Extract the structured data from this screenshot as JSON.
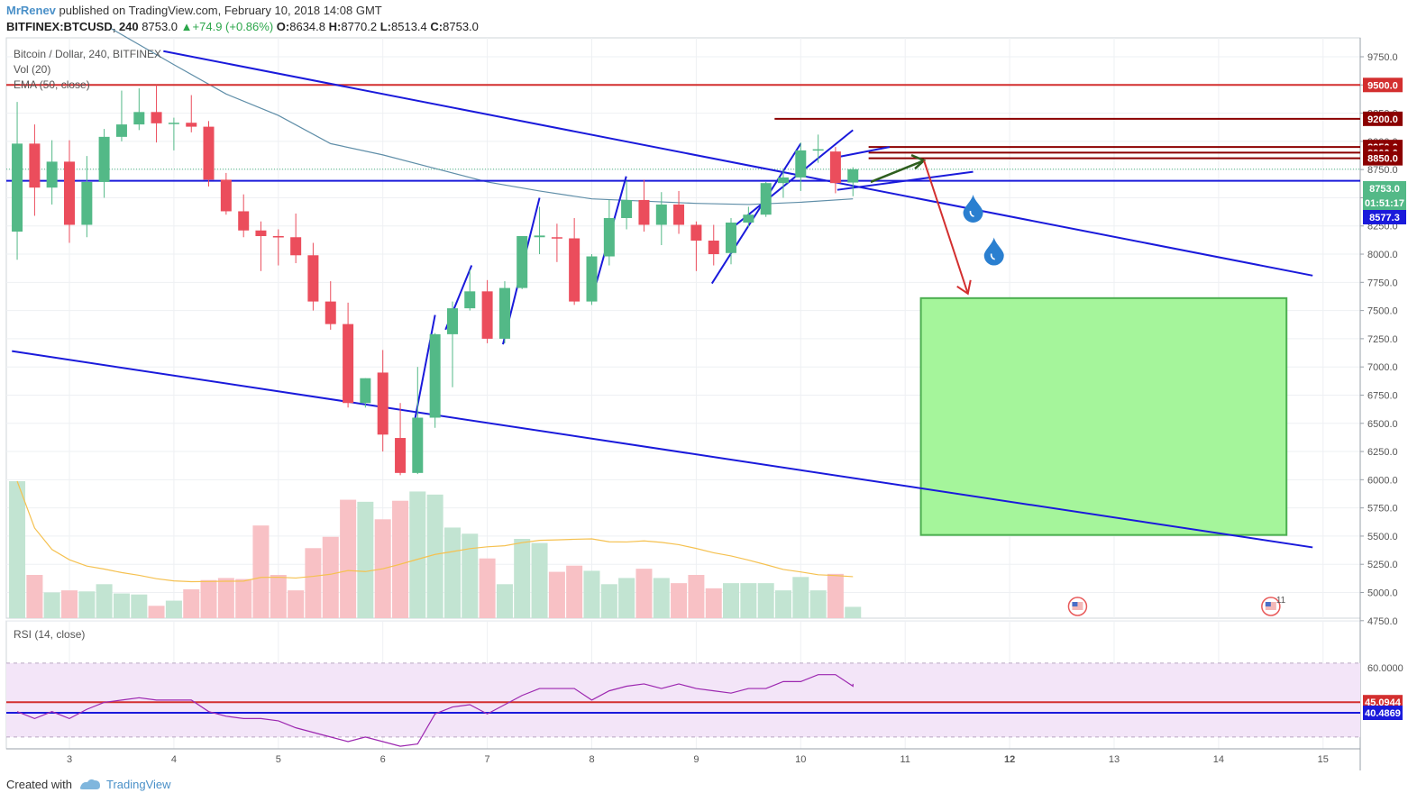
{
  "header": {
    "author": "MrRenev",
    "published": " published on TradingView.com, February 10, 2018 14:08 GMT",
    "symbol": "BITFINEX:BTCUSD, 240",
    "last": "8753.0",
    "change": "+74.9 (+0.86%)",
    "o_label": "O:",
    "o": "8634.8",
    "h_label": "H:",
    "h": "8770.2",
    "l_label": "L:",
    "l": "8513.4",
    "c_label": "C:",
    "c": "8753.0"
  },
  "legend": {
    "main": "Bitcoin / Dollar, 240, BITFINEX",
    "vol": "Vol (20)",
    "ema": "EMA (50, close)",
    "rsi": "RSI (14, close)"
  },
  "footer": {
    "created": "Created with",
    "brand": "TradingView"
  },
  "colors": {
    "up": "#53b987",
    "down": "#eb4d5c",
    "up_vol": "#c2e4d2",
    "down_vol": "#f8c1c5",
    "trend": "#1a1adb",
    "level": "#d32f2f",
    "dark_level": "#8b0000",
    "ema": "#5f8ea8",
    "vol_ma": "#f5c150",
    "rsi": "#9c27b0",
    "rsi_bg": "#f3e5f8",
    "target_fill": "#a5f59b",
    "target_stroke": "#4caf50",
    "drop": "#2a7fd0"
  },
  "icons": [
    "droplet-icon",
    "us-flag-event-icon",
    "arrow-icon",
    "tradingview-logo-icon"
  ],
  "chart_data": {
    "type": "candlestick",
    "timeframe": "240",
    "x_axis_labels": [
      "3",
      "4",
      "5",
      "6",
      "7",
      "8",
      "9",
      "10",
      "11",
      "12",
      "13",
      "14",
      "15"
    ],
    "price_axis_labels": [
      "9750.0",
      "9500.0",
      "9250.0",
      "9000.0",
      "8750.0",
      "8500.0",
      "8250.0",
      "8000.0",
      "7750.0",
      "7500.0",
      "7250.0",
      "7000.0",
      "6750.0",
      "6500.0",
      "6250.0",
      "6000.0",
      "5750.0",
      "5500.0",
      "5250.0",
      "5000.0",
      "4750.0"
    ],
    "ylim": [
      4630,
      9930
    ],
    "candles": [
      {
        "day": 2.5,
        "o": 8200,
        "h": 9350,
        "l": 7950,
        "c": 8980
      },
      {
        "day": 2.667,
        "o": 8980,
        "h": 9150,
        "l": 8340,
        "c": 8590
      },
      {
        "day": 2.833,
        "o": 8590,
        "h": 9010,
        "l": 8440,
        "c": 8820
      },
      {
        "day": 3.0,
        "o": 8820,
        "h": 9010,
        "l": 8100,
        "c": 8260
      },
      {
        "day": 3.167,
        "o": 8260,
        "h": 8870,
        "l": 8150,
        "c": 8640
      },
      {
        "day": 3.333,
        "o": 8640,
        "h": 9110,
        "l": 8500,
        "c": 9040
      },
      {
        "day": 3.5,
        "o": 9040,
        "h": 9450,
        "l": 9000,
        "c": 9150
      },
      {
        "day": 3.667,
        "o": 9150,
        "h": 9470,
        "l": 9100,
        "c": 9260
      },
      {
        "day": 3.833,
        "o": 9260,
        "h": 9500,
        "l": 8990,
        "c": 9160
      },
      {
        "day": 4.0,
        "o": 9160,
        "h": 9210,
        "l": 8920,
        "c": 9165
      },
      {
        "day": 4.167,
        "o": 9165,
        "h": 9410,
        "l": 9080,
        "c": 9130
      },
      {
        "day": 4.333,
        "o": 9130,
        "h": 9180,
        "l": 8600,
        "c": 8660
      },
      {
        "day": 4.5,
        "o": 8660,
        "h": 8720,
        "l": 8350,
        "c": 8380
      },
      {
        "day": 4.667,
        "o": 8380,
        "h": 8530,
        "l": 8150,
        "c": 8210
      },
      {
        "day": 4.833,
        "o": 8210,
        "h": 8290,
        "l": 7850,
        "c": 8160
      },
      {
        "day": 5.0,
        "o": 8160,
        "h": 8220,
        "l": 7900,
        "c": 8150
      },
      {
        "day": 5.167,
        "o": 8150,
        "h": 8360,
        "l": 7920,
        "c": 7990
      },
      {
        "day": 5.333,
        "o": 7990,
        "h": 8100,
        "l": 7500,
        "c": 7580
      },
      {
        "day": 5.5,
        "o": 7580,
        "h": 7760,
        "l": 7330,
        "c": 7380
      },
      {
        "day": 5.667,
        "o": 7380,
        "h": 7570,
        "l": 6640,
        "c": 6680
      },
      {
        "day": 5.833,
        "o": 6680,
        "h": 6900,
        "l": 6640,
        "c": 6900
      },
      {
        "day": 6.0,
        "o": 6950,
        "h": 7150,
        "l": 6250,
        "c": 6400
      },
      {
        "day": 6.167,
        "o": 6370,
        "h": 6680,
        "l": 6040,
        "c": 6060
      },
      {
        "day": 6.333,
        "o": 6060,
        "h": 7000,
        "l": 6050,
        "c": 6550
      },
      {
        "day": 6.5,
        "o": 6550,
        "h": 7300,
        "l": 6460,
        "c": 7290
      },
      {
        "day": 6.667,
        "o": 7290,
        "h": 7580,
        "l": 6820,
        "c": 7520
      },
      {
        "day": 6.833,
        "o": 7520,
        "h": 7860,
        "l": 7500,
        "c": 7670
      },
      {
        "day": 7.0,
        "o": 7670,
        "h": 7770,
        "l": 7210,
        "c": 7250
      },
      {
        "day": 7.167,
        "o": 7250,
        "h": 7760,
        "l": 7210,
        "c": 7700
      },
      {
        "day": 7.333,
        "o": 7700,
        "h": 8160,
        "l": 7690,
        "c": 8160
      },
      {
        "day": 7.5,
        "o": 8150,
        "h": 8420,
        "l": 8000,
        "c": 8165
      },
      {
        "day": 7.667,
        "o": 8150,
        "h": 8270,
        "l": 7930,
        "c": 8140
      },
      {
        "day": 7.833,
        "o": 8140,
        "h": 8320,
        "l": 7550,
        "c": 7580
      },
      {
        "day": 8.0,
        "o": 7580,
        "h": 8000,
        "l": 7550,
        "c": 7980
      },
      {
        "day": 8.167,
        "o": 7980,
        "h": 8480,
        "l": 7900,
        "c": 8320
      },
      {
        "day": 8.333,
        "o": 8320,
        "h": 8650,
        "l": 8220,
        "c": 8480
      },
      {
        "day": 8.5,
        "o": 8480,
        "h": 8660,
        "l": 8200,
        "c": 8260
      },
      {
        "day": 8.667,
        "o": 8260,
        "h": 8550,
        "l": 8080,
        "c": 8440
      },
      {
        "day": 8.833,
        "o": 8440,
        "h": 8560,
        "l": 8180,
        "c": 8260
      },
      {
        "day": 9.0,
        "o": 8260,
        "h": 8290,
        "l": 7850,
        "c": 8120
      },
      {
        "day": 9.167,
        "o": 8120,
        "h": 8260,
        "l": 7900,
        "c": 8000
      },
      {
        "day": 9.333,
        "o": 8010,
        "h": 8320,
        "l": 7910,
        "c": 8280
      },
      {
        "day": 9.5,
        "o": 8280,
        "h": 8420,
        "l": 8240,
        "c": 8350
      },
      {
        "day": 9.667,
        "o": 8350,
        "h": 8640,
        "l": 8330,
        "c": 8630
      },
      {
        "day": 9.833,
        "o": 8630,
        "h": 8750,
        "l": 8500,
        "c": 8680
      },
      {
        "day": 10.0,
        "o": 8680,
        "h": 8990,
        "l": 8560,
        "c": 8920
      },
      {
        "day": 10.167,
        "o": 8920,
        "h": 9060,
        "l": 8810,
        "c": 8930
      },
      {
        "day": 10.333,
        "o": 8910,
        "h": 8950,
        "l": 8540,
        "c": 8630
      },
      {
        "day": 10.5,
        "o": 8634.8,
        "h": 8770.2,
        "l": 8513.4,
        "c": 8753.0
      }
    ],
    "volume": {
      "label": "Vol (20)",
      "bars": [
        1330,
        420,
        250,
        270,
        260,
        330,
        240,
        230,
        120,
        170,
        280,
        370,
        390,
        380,
        900,
        420,
        270,
        680,
        790,
        1150,
        1130,
        960,
        1140,
        1230,
        1200,
        880,
        820,
        580,
        330,
        770,
        730,
        450,
        510,
        460,
        330,
        390,
        480,
        390,
        340,
        420,
        290,
        340,
        340,
        340,
        270,
        400,
        270,
        430,
        110
      ]
    },
    "ema": {
      "label": "EMA (50, close)",
      "points": [
        [
          3.4,
          10000
        ],
        [
          4.0,
          9680
        ],
        [
          4.5,
          9420
        ],
        [
          5.0,
          9230
        ],
        [
          5.5,
          8980
        ],
        [
          6.0,
          8880
        ],
        [
          6.5,
          8760
        ],
        [
          7.0,
          8640
        ],
        [
          7.5,
          8560
        ],
        [
          8.0,
          8490
        ],
        [
          8.5,
          8470
        ],
        [
          9.0,
          8450
        ],
        [
          9.5,
          8440
        ],
        [
          10.0,
          8460
        ],
        [
          10.5,
          8490
        ]
      ]
    },
    "rsi": {
      "label": "RSI (14, close)",
      "ylim": [
        28,
        70
      ],
      "band": [
        30,
        62
      ],
      "ticks": [
        "60.0000"
      ],
      "levels": [
        {
          "value": 45.0944,
          "label": "45.0944",
          "color": "#d32f2f"
        },
        {
          "value": 40.4869,
          "label": "40.4869",
          "color": "#1a1adb"
        }
      ],
      "values": [
        41,
        38,
        41,
        38,
        42,
        45,
        46,
        47,
        46,
        46,
        46,
        41,
        39,
        38,
        38,
        37,
        34,
        32,
        30,
        28,
        30,
        28,
        26,
        27,
        40,
        43,
        44,
        40,
        44,
        48,
        51,
        51,
        51,
        46,
        50,
        52,
        53,
        51,
        53,
        51,
        50,
        49,
        51,
        51,
        54,
        54,
        57,
        57,
        52,
        53
      ]
    },
    "levels": [
      {
        "price": 9500.0,
        "label": "9500.0",
        "color": "#d32f2f",
        "full": true
      },
      {
        "price": 9200.0,
        "label": "9200.0",
        "color": "#8b0000",
        "from_day": 9.75
      },
      {
        "price": 8950.0,
        "label": "8950.0",
        "color": "#8b0000",
        "from_day": 10.65
      },
      {
        "price": 8900.0,
        "label": "8900.0",
        "color": "#8b0000",
        "from_day": 10.65
      },
      {
        "price": 8850.0,
        "label": "8850.0",
        "color": "#8b0000",
        "from_day": 10.65
      },
      {
        "price": 8650.0,
        "label": "",
        "color": "#1a1adb",
        "full": true
      }
    ],
    "price_tags": [
      {
        "price": 8753.0,
        "label": "8753.0",
        "color": "#53b987"
      },
      {
        "price": 8620.0,
        "label": "01:51:17",
        "color": "#53b987"
      },
      {
        "price": 8577.3,
        "label": "8577.3",
        "color": "#1a1adb"
      }
    ],
    "trendlines": [
      {
        "name": "upper-trend",
        "from": [
          3.9,
          9800
        ],
        "to": [
          14.9,
          7810
        ]
      },
      {
        "name": "lower-trend",
        "from": [
          2.45,
          7140
        ],
        "to": [
          14.9,
          5400
        ]
      },
      {
        "name": "wedge-lower",
        "from": [
          10.35,
          8570
        ],
        "to": [
          11.65,
          8730
        ]
      },
      {
        "name": "wedge-upper",
        "from": [
          10.35,
          8860
        ],
        "to": [
          10.85,
          8950
        ]
      },
      {
        "name": "rise-1",
        "from": [
          6.3,
          6500
        ],
        "to": [
          6.5,
          7460
        ]
      },
      {
        "name": "rise-2",
        "from": [
          6.6,
          7330
        ],
        "to": [
          6.85,
          7900
        ]
      },
      {
        "name": "rise-3",
        "from": [
          7.15,
          7200
        ],
        "to": [
          7.5,
          8500
        ]
      },
      {
        "name": "rise-4",
        "from": [
          8.0,
          7600
        ],
        "to": [
          8.33,
          8690
        ]
      },
      {
        "name": "rise-5",
        "from": [
          9.15,
          7740
        ],
        "to": [
          10.0,
          8980
        ]
      },
      {
        "name": "rise-6",
        "from": [
          9.3,
          8200
        ],
        "to": [
          10.5,
          9100
        ]
      }
    ],
    "target_zone": {
      "from_day": 11.15,
      "to_day": 14.65,
      "top": 7610,
      "bottom": 5510
    },
    "projection": {
      "green_arrow": [
        [
          10.67,
          8640
        ],
        [
          11.18,
          8830
        ]
      ],
      "red_arrow": [
        [
          11.18,
          8830
        ],
        [
          11.6,
          7650
        ]
      ]
    },
    "droplets": [
      [
        11.65,
        8400
      ],
      [
        11.85,
        8020
      ]
    ],
    "event_icons": [
      {
        "day": 12.65,
        "badge": ""
      },
      {
        "day": 14.5,
        "badge": "11"
      }
    ]
  }
}
